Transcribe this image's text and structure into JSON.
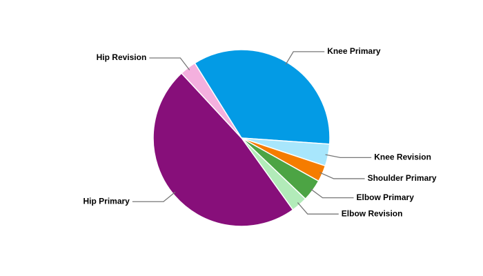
{
  "chart_data": {
    "type": "pie",
    "categories": [
      "Knee Primary",
      "Knee Revision",
      "Shoulder Primary",
      "Elbow Primary",
      "Elbow Revision",
      "Hip Primary",
      "Hip Revision"
    ],
    "values": [
      35,
      4,
      3,
      4,
      3,
      48,
      3
    ],
    "colors": [
      "#039be5",
      "#a8e6fc",
      "#f57c00",
      "#4ca444",
      "#b2ebb9",
      "#870f7a",
      "#f4b0de"
    ]
  }
}
